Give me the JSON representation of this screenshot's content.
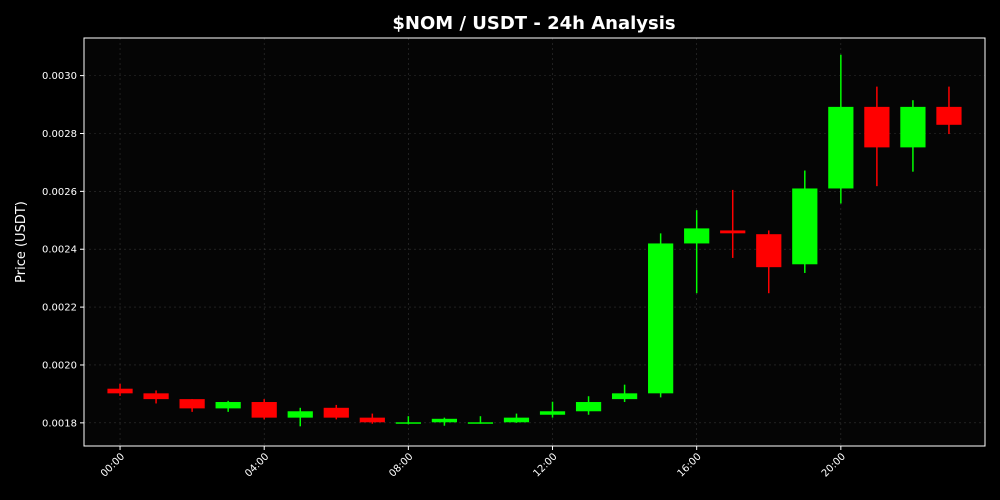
{
  "chart_data": {
    "type": "candlestick",
    "title": "$NOM / USDT - 24h Analysis",
    "xlabel": "",
    "ylabel": "Price (USDT)",
    "ylim": [
      0.00172,
      0.00313
    ],
    "xlim": [
      -1,
      24
    ],
    "grid": true,
    "x_ticks": [
      0,
      4,
      8,
      12,
      16,
      20
    ],
    "x_tick_labels": [
      "00:00",
      "04:00",
      "08:00",
      "12:00",
      "16:00",
      "20:00"
    ],
    "y_ticks": [
      0.0018,
      0.002,
      0.0022,
      0.0024,
      0.0026,
      0.0028,
      0.003
    ],
    "y_tick_labels": [
      "0.0018",
      "0.0020",
      "0.0022",
      "0.0024",
      "0.0026",
      "0.0028",
      "0.0030"
    ],
    "colors": {
      "up": "#00ff00",
      "down": "#ff0000",
      "background": "#000000",
      "grid": "#333333",
      "text": "#ffffff"
    },
    "candles": [
      {
        "hour": 0,
        "open": 0.001918,
        "high": 0.001935,
        "low": 0.001893,
        "close": 0.001902
      },
      {
        "hour": 1,
        "open": 0.001902,
        "high": 0.001912,
        "low": 0.001867,
        "close": 0.001882
      },
      {
        "hour": 2,
        "open": 0.001882,
        "high": 0.001882,
        "low": 0.001838,
        "close": 0.00185
      },
      {
        "hour": 3,
        "open": 0.00185,
        "high": 0.001876,
        "low": 0.001838,
        "close": 0.001872
      },
      {
        "hour": 4,
        "open": 0.001872,
        "high": 0.001882,
        "low": 0.001812,
        "close": 0.001818
      },
      {
        "hour": 5,
        "open": 0.001818,
        "high": 0.001852,
        "low": 0.001788,
        "close": 0.00184
      },
      {
        "hour": 6,
        "open": 0.001852,
        "high": 0.001862,
        "low": 0.001812,
        "close": 0.001818
      },
      {
        "hour": 7,
        "open": 0.001818,
        "high": 0.001832,
        "low": 0.001797,
        "close": 0.001802
      },
      {
        "hour": 8,
        "open": 0.0018,
        "high": 0.001823,
        "low": 0.001795,
        "close": 0.001802
      },
      {
        "hour": 9,
        "open": 0.001802,
        "high": 0.001818,
        "low": 0.00179,
        "close": 0.001814
      },
      {
        "hour": 10,
        "open": 0.0018,
        "high": 0.001823,
        "low": 0.001797,
        "close": 0.001802
      },
      {
        "hour": 11,
        "open": 0.001802,
        "high": 0.001832,
        "low": 0.0018,
        "close": 0.001818
      },
      {
        "hour": 12,
        "open": 0.001828,
        "high": 0.001873,
        "low": 0.001818,
        "close": 0.00184
      },
      {
        "hour": 13,
        "open": 0.00184,
        "high": 0.001892,
        "low": 0.001828,
        "close": 0.001872
      },
      {
        "hour": 14,
        "open": 0.001882,
        "high": 0.001932,
        "low": 0.001872,
        "close": 0.001902
      },
      {
        "hour": 15,
        "open": 0.001902,
        "high": 0.002455,
        "low": 0.001888,
        "close": 0.00242
      },
      {
        "hour": 16,
        "open": 0.00242,
        "high": 0.002535,
        "low": 0.002248,
        "close": 0.002472
      },
      {
        "hour": 17,
        "open": 0.002465,
        "high": 0.002605,
        "low": 0.00237,
        "close": 0.002455
      },
      {
        "hour": 18,
        "open": 0.002452,
        "high": 0.002465,
        "low": 0.002248,
        "close": 0.002338
      },
      {
        "hour": 19,
        "open": 0.002348,
        "high": 0.002672,
        "low": 0.002318,
        "close": 0.00261
      },
      {
        "hour": 20,
        "open": 0.00261,
        "high": 0.003072,
        "low": 0.002558,
        "close": 0.002892
      },
      {
        "hour": 21,
        "open": 0.002892,
        "high": 0.002962,
        "low": 0.002618,
        "close": 0.002752
      },
      {
        "hour": 22,
        "open": 0.002752,
        "high": 0.002915,
        "low": 0.002668,
        "close": 0.002892
      },
      {
        "hour": 23,
        "open": 0.002892,
        "high": 0.002962,
        "low": 0.002798,
        "close": 0.00283
      }
    ]
  }
}
